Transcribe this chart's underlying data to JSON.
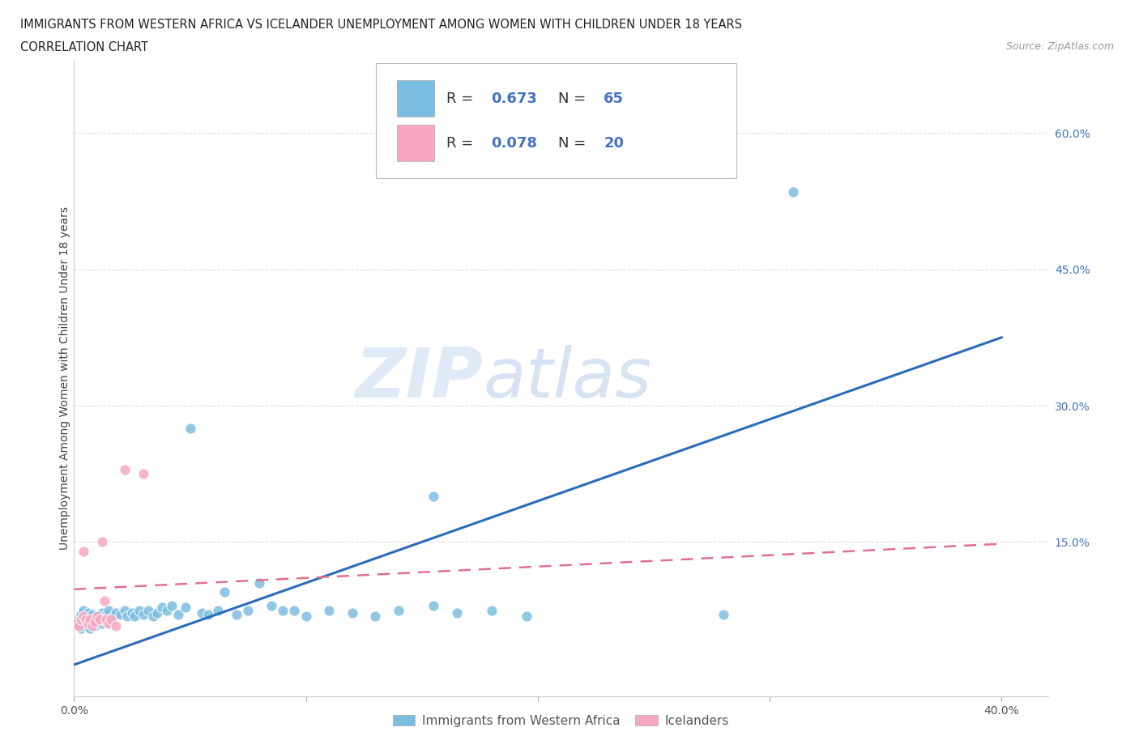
{
  "title_line1": "IMMIGRANTS FROM WESTERN AFRICA VS ICELANDER UNEMPLOYMENT AMONG WOMEN WITH CHILDREN UNDER 18 YEARS",
  "title_line2": "CORRELATION CHART",
  "source": "Source: ZipAtlas.com",
  "ylabel": "Unemployment Among Women with Children Under 18 years",
  "xlim": [
    0.0,
    0.42
  ],
  "ylim": [
    -0.02,
    0.68
  ],
  "xticks": [
    0.0,
    0.1,
    0.2,
    0.3,
    0.4
  ],
  "xtick_labels": [
    "0.0%",
    "",
    "",
    "",
    "40.0%"
  ],
  "ytick_labels_right": [
    "60.0%",
    "45.0%",
    "30.0%",
    "15.0%"
  ],
  "yticks_right": [
    0.6,
    0.45,
    0.3,
    0.15
  ],
  "blue_R": "0.673",
  "blue_N": "65",
  "pink_R": "0.078",
  "pink_N": "20",
  "blue_color": "#7bbde0",
  "pink_color": "#f5a8c0",
  "blue_line_color": "#2b6cb8",
  "pink_line_color": "#e07090",
  "watermark_zip": "ZIP",
  "watermark_atlas": "atlas",
  "legend_label_blue": "Immigrants from Western Africa",
  "legend_label_pink": "Icelanders",
  "blue_scatter_x": [
    0.001,
    0.002,
    0.003,
    0.003,
    0.004,
    0.004,
    0.005,
    0.005,
    0.006,
    0.006,
    0.007,
    0.007,
    0.008,
    0.008,
    0.009,
    0.01,
    0.01,
    0.011,
    0.012,
    0.012,
    0.013,
    0.014,
    0.015,
    0.015,
    0.016,
    0.017,
    0.018,
    0.02,
    0.022,
    0.023,
    0.025,
    0.026,
    0.028,
    0.03,
    0.032,
    0.034,
    0.036,
    0.038,
    0.04,
    0.042,
    0.045,
    0.048,
    0.05,
    0.055,
    0.058,
    0.062,
    0.065,
    0.07,
    0.075,
    0.08,
    0.085,
    0.09,
    0.095,
    0.1,
    0.11,
    0.12,
    0.13,
    0.14,
    0.155,
    0.165,
    0.18,
    0.195,
    0.155,
    0.28,
    0.31
  ],
  "blue_scatter_y": [
    0.06,
    0.065,
    0.055,
    0.07,
    0.06,
    0.075,
    0.058,
    0.068,
    0.062,
    0.072,
    0.055,
    0.065,
    0.06,
    0.07,
    0.058,
    0.062,
    0.068,
    0.065,
    0.06,
    0.072,
    0.068,
    0.062,
    0.07,
    0.075,
    0.065,
    0.068,
    0.072,
    0.07,
    0.075,
    0.068,
    0.072,
    0.068,
    0.075,
    0.07,
    0.075,
    0.068,
    0.072,
    0.078,
    0.075,
    0.08,
    0.07,
    0.078,
    0.275,
    0.072,
    0.07,
    0.075,
    0.095,
    0.07,
    0.075,
    0.105,
    0.08,
    0.075,
    0.075,
    0.068,
    0.075,
    0.072,
    0.068,
    0.075,
    0.08,
    0.072,
    0.075,
    0.068,
    0.2,
    0.07,
    0.535
  ],
  "pink_scatter_x": [
    0.001,
    0.002,
    0.003,
    0.004,
    0.004,
    0.005,
    0.006,
    0.007,
    0.008,
    0.009,
    0.01,
    0.011,
    0.012,
    0.013,
    0.014,
    0.015,
    0.016,
    0.018,
    0.022,
    0.03
  ],
  "pink_scatter_y": [
    0.06,
    0.058,
    0.065,
    0.14,
    0.068,
    0.065,
    0.06,
    0.065,
    0.058,
    0.062,
    0.068,
    0.065,
    0.15,
    0.085,
    0.065,
    0.06,
    0.065,
    0.058,
    0.23,
    0.225
  ],
  "blue_trend_x": [
    0.0,
    0.4
  ],
  "blue_trend_y": [
    0.015,
    0.375
  ],
  "pink_trend_x": [
    0.0,
    0.4
  ],
  "pink_trend_y": [
    0.098,
    0.148
  ]
}
